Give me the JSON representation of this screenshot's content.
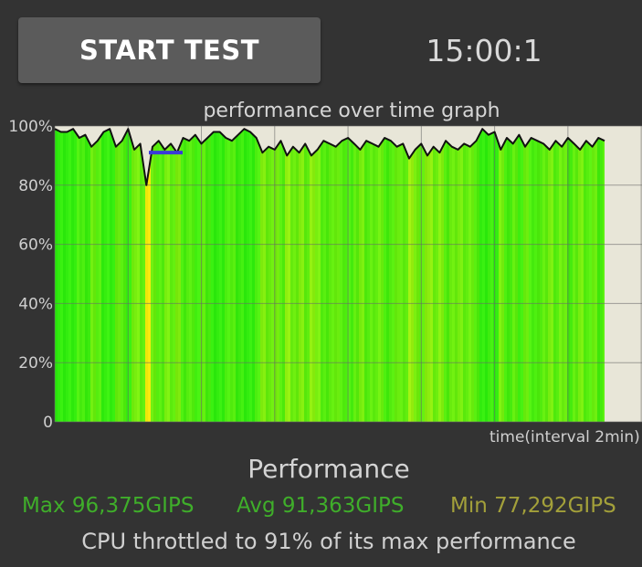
{
  "header": {
    "start_button_label": "START TEST",
    "timer": "15:00:1"
  },
  "colors": {
    "background": "#333333",
    "button": "#5b5b5b",
    "plot_background": "#e8e6d8",
    "max_color": "#3fae2a",
    "avg_color": "#3fae2a",
    "min_color": "#a3a03a"
  },
  "chart_data": {
    "type": "area",
    "title": "performance over time graph",
    "xlabel": "time(interval 2min)",
    "ylabel": "",
    "ylim": [
      0,
      100
    ],
    "yticks": [
      "100%",
      "80%",
      "60%",
      "40%",
      "20%",
      "0"
    ],
    "grid": true,
    "x_range_minutes": [
      0,
      15
    ],
    "series": [
      {
        "name": "",
        "values": [
          99,
          98,
          98,
          99,
          96,
          97,
          93,
          95,
          98,
          99,
          93,
          95,
          99,
          92,
          94,
          80,
          93,
          95,
          92,
          94,
          91,
          96,
          95,
          97,
          94,
          96,
          98,
          98,
          96,
          95,
          97,
          99,
          98,
          96,
          91,
          93,
          92,
          95,
          90,
          93,
          91,
          94,
          90,
          92,
          95,
          94,
          93,
          95,
          96,
          94,
          92,
          95,
          94,
          93,
          96,
          95,
          93,
          94,
          89,
          92,
          94,
          90,
          93,
          91,
          95,
          93,
          92,
          94,
          93,
          95,
          99,
          97,
          98,
          92,
          96,
          94,
          97,
          93,
          96,
          95,
          94,
          92,
          95,
          93,
          96,
          94,
          92,
          95,
          93,
          96,
          95
        ]
      }
    ],
    "reference_value": 91
  },
  "performance": {
    "heading": "Performance",
    "max": "Max 96,375GIPS",
    "avg": "Avg 91,363GIPS",
    "min": "Min 77,292GIPS",
    "throttle_text": "CPU throttled to 91% of its max performance"
  }
}
